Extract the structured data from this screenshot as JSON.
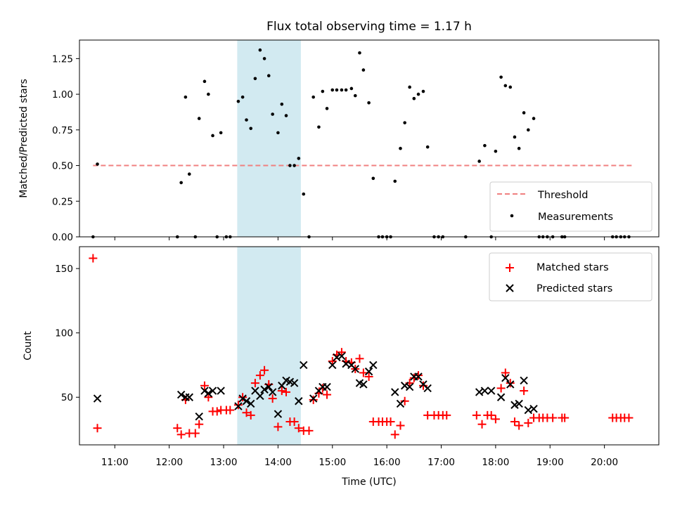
{
  "chart_data": [
    {
      "type": "scatter",
      "title": "Flux total observing time = 1.17 h",
      "xlabel": "",
      "ylabel": "Matched/Predicted stars",
      "xlim": [
        10.35,
        21.0
      ],
      "ylim": [
        0,
        1.38
      ],
      "yticks": [
        0.0,
        0.25,
        0.5,
        0.75,
        1.0,
        1.25
      ],
      "ytick_labels": [
        "0.00",
        "0.25",
        "0.50",
        "0.75",
        "1.00",
        "1.25"
      ],
      "shaded_region": {
        "x0": 13.25,
        "x1": 14.42,
        "color": "#add8e6"
      },
      "threshold_line": {
        "name": "Threshold",
        "y": 0.5,
        "x0": 10.6,
        "x1": 20.5,
        "color": "#f08080"
      },
      "legend_position": "lower-right",
      "series": [
        {
          "name": "Measurements",
          "color": "#000000",
          "points": [
            [
              10.6,
              0.0
            ],
            [
              10.68,
              0.51
            ],
            [
              12.15,
              0.0
            ],
            [
              12.22,
              0.38
            ],
            [
              12.3,
              0.98
            ],
            [
              12.37,
              0.44
            ],
            [
              12.48,
              0.0
            ],
            [
              12.55,
              0.83
            ],
            [
              12.65,
              1.09
            ],
            [
              12.72,
              1.0
            ],
            [
              12.8,
              0.71
            ],
            [
              12.88,
              0.0
            ],
            [
              12.95,
              0.73
            ],
            [
              13.05,
              0.0
            ],
            [
              13.12,
              0.0
            ],
            [
              13.27,
              0.95
            ],
            [
              13.35,
              0.98
            ],
            [
              13.42,
              0.82
            ],
            [
              13.5,
              0.76
            ],
            [
              13.58,
              1.11
            ],
            [
              13.67,
              1.31
            ],
            [
              13.75,
              1.25
            ],
            [
              13.83,
              1.13
            ],
            [
              13.9,
              0.86
            ],
            [
              14.0,
              0.73
            ],
            [
              14.07,
              0.93
            ],
            [
              14.15,
              0.85
            ],
            [
              14.22,
              0.5
            ],
            [
              14.3,
              0.5
            ],
            [
              14.38,
              0.55
            ],
            [
              14.47,
              0.3
            ],
            [
              14.57,
              0.0
            ],
            [
              14.65,
              0.98
            ],
            [
              14.75,
              0.77
            ],
            [
              14.82,
              1.02
            ],
            [
              14.9,
              0.9
            ],
            [
              15.0,
              1.03
            ],
            [
              15.08,
              1.03
            ],
            [
              15.17,
              1.03
            ],
            [
              15.25,
              1.03
            ],
            [
              15.35,
              1.04
            ],
            [
              15.42,
              0.99
            ],
            [
              15.5,
              1.29
            ],
            [
              15.57,
              1.17
            ],
            [
              15.67,
              0.94
            ],
            [
              15.75,
              0.41
            ],
            [
              15.85,
              0.0
            ],
            [
              15.92,
              0.0
            ],
            [
              16.0,
              0.0
            ],
            [
              16.07,
              0.0
            ],
            [
              16.15,
              0.39
            ],
            [
              16.25,
              0.62
            ],
            [
              16.33,
              0.8
            ],
            [
              16.42,
              1.05
            ],
            [
              16.5,
              0.97
            ],
            [
              16.58,
              1.0
            ],
            [
              16.67,
              1.02
            ],
            [
              16.75,
              0.63
            ],
            [
              16.87,
              0.0
            ],
            [
              16.95,
              0.0
            ],
            [
              17.03,
              0.0
            ],
            [
              17.45,
              0.0
            ],
            [
              17.7,
              0.53
            ],
            [
              17.8,
              0.64
            ],
            [
              17.92,
              0.0
            ],
            [
              18.0,
              0.6
            ],
            [
              18.1,
              1.12
            ],
            [
              18.18,
              1.06
            ],
            [
              18.27,
              1.05
            ],
            [
              18.35,
              0.7
            ],
            [
              18.43,
              0.62
            ],
            [
              18.52,
              0.87
            ],
            [
              18.6,
              0.75
            ],
            [
              18.7,
              0.83
            ],
            [
              18.8,
              0.0
            ],
            [
              18.87,
              0.0
            ],
            [
              18.95,
              0.0
            ],
            [
              19.05,
              0.0
            ],
            [
              19.22,
              0.0
            ],
            [
              19.27,
              0.0
            ],
            [
              20.15,
              0.0
            ],
            [
              20.22,
              0.0
            ],
            [
              20.3,
              0.0
            ],
            [
              20.37,
              0.0
            ],
            [
              20.45,
              0.0
            ]
          ]
        }
      ]
    },
    {
      "type": "scatter",
      "title": "",
      "xlabel": "Time (UTC)",
      "ylabel": "Count",
      "xlim": [
        10.35,
        21.0
      ],
      "ylim": [
        13,
        167
      ],
      "xticks": [
        11,
        12,
        13,
        14,
        15,
        16,
        17,
        18,
        19,
        20
      ],
      "xtick_labels": [
        "11:00",
        "12:00",
        "13:00",
        "14:00",
        "15:00",
        "16:00",
        "17:00",
        "18:00",
        "19:00",
        "20:00"
      ],
      "yticks": [
        50,
        100,
        150
      ],
      "ytick_labels": [
        "50",
        "100",
        "150"
      ],
      "shaded_region": {
        "x0": 13.25,
        "x1": 14.42,
        "color": "#add8e6"
      },
      "legend_position": "upper-right",
      "series": [
        {
          "name": "Matched stars",
          "color": "#ff0000",
          "marker": "plus",
          "points": [
            [
              10.6,
              158
            ],
            [
              10.68,
              26
            ],
            [
              12.15,
              26
            ],
            [
              12.22,
              21
            ],
            [
              12.3,
              48
            ],
            [
              12.37,
              22
            ],
            [
              12.48,
              22
            ],
            [
              12.55,
              29
            ],
            [
              12.65,
              59
            ],
            [
              12.72,
              50
            ],
            [
              12.8,
              39
            ],
            [
              12.88,
              39
            ],
            [
              12.95,
              40
            ],
            [
              13.05,
              40
            ],
            [
              13.12,
              40
            ],
            [
              13.27,
              44
            ],
            [
              13.35,
              50
            ],
            [
              13.42,
              38
            ],
            [
              13.5,
              36
            ],
            [
              13.58,
              61
            ],
            [
              13.67,
              67
            ],
            [
              13.75,
              71
            ],
            [
              13.83,
              60
            ],
            [
              13.9,
              49
            ],
            [
              14.0,
              27
            ],
            [
              14.07,
              55
            ],
            [
              14.15,
              54
            ],
            [
              14.22,
              31
            ],
            [
              14.3,
              31
            ],
            [
              14.38,
              26
            ],
            [
              14.47,
              24
            ],
            [
              14.57,
              24
            ],
            [
              14.65,
              48
            ],
            [
              14.75,
              53
            ],
            [
              14.82,
              57
            ],
            [
              14.9,
              52
            ],
            [
              15.0,
              78
            ],
            [
              15.08,
              83
            ],
            [
              15.17,
              85
            ],
            [
              15.25,
              78
            ],
            [
              15.35,
              77
            ],
            [
              15.42,
              72
            ],
            [
              15.5,
              80
            ],
            [
              15.57,
              69
            ],
            [
              15.67,
              66
            ],
            [
              15.75,
              31
            ],
            [
              15.85,
              31
            ],
            [
              15.92,
              31
            ],
            [
              16.0,
              31
            ],
            [
              16.07,
              31
            ],
            [
              16.15,
              21
            ],
            [
              16.25,
              28
            ],
            [
              16.33,
              47
            ],
            [
              16.42,
              61
            ],
            [
              16.5,
              65
            ],
            [
              16.58,
              67
            ],
            [
              16.67,
              59
            ],
            [
              16.75,
              36
            ],
            [
              16.87,
              36
            ],
            [
              16.95,
              36
            ],
            [
              17.03,
              36
            ],
            [
              17.1,
              36
            ],
            [
              17.65,
              36
            ],
            [
              17.75,
              29
            ],
            [
              17.85,
              36
            ],
            [
              17.92,
              36
            ],
            [
              18.0,
              33
            ],
            [
              18.1,
              57
            ],
            [
              18.18,
              69
            ],
            [
              18.27,
              61
            ],
            [
              18.35,
              31
            ],
            [
              18.43,
              28
            ],
            [
              18.52,
              55
            ],
            [
              18.6,
              30
            ],
            [
              18.7,
              34
            ],
            [
              18.8,
              34
            ],
            [
              18.87,
              34
            ],
            [
              18.95,
              34
            ],
            [
              19.05,
              34
            ],
            [
              19.22,
              34
            ],
            [
              19.27,
              34
            ],
            [
              20.15,
              34
            ],
            [
              20.22,
              34
            ],
            [
              20.3,
              34
            ],
            [
              20.37,
              34
            ],
            [
              20.45,
              34
            ]
          ]
        },
        {
          "name": "Predicted stars",
          "color": "#000000",
          "marker": "x",
          "points": [
            [
              10.68,
              49
            ],
            [
              12.22,
              52
            ],
            [
              12.3,
              50
            ],
            [
              12.37,
              50
            ],
            [
              12.55,
              35
            ],
            [
              12.65,
              55
            ],
            [
              12.72,
              53
            ],
            [
              12.8,
              55
            ],
            [
              12.95,
              55
            ],
            [
              13.27,
              43
            ],
            [
              13.35,
              49
            ],
            [
              13.42,
              47
            ],
            [
              13.5,
              45
            ],
            [
              13.58,
              55
            ],
            [
              13.67,
              51
            ],
            [
              13.75,
              56
            ],
            [
              13.83,
              58
            ],
            [
              13.9,
              54
            ],
            [
              14.0,
              37
            ],
            [
              14.07,
              59
            ],
            [
              14.15,
              63
            ],
            [
              14.22,
              62
            ],
            [
              14.3,
              61
            ],
            [
              14.38,
              47
            ],
            [
              14.47,
              75
            ],
            [
              14.65,
              49
            ],
            [
              14.75,
              55
            ],
            [
              14.82,
              58
            ],
            [
              14.9,
              58
            ],
            [
              15.0,
              75
            ],
            [
              15.08,
              81
            ],
            [
              15.17,
              82
            ],
            [
              15.25,
              76
            ],
            [
              15.35,
              75
            ],
            [
              15.42,
              72
            ],
            [
              15.5,
              61
            ],
            [
              15.57,
              60
            ],
            [
              15.67,
              70
            ],
            [
              15.75,
              75
            ],
            [
              16.15,
              54
            ],
            [
              16.25,
              45
            ],
            [
              16.33,
              59
            ],
            [
              16.42,
              58
            ],
            [
              16.5,
              66
            ],
            [
              16.58,
              66
            ],
            [
              16.67,
              60
            ],
            [
              16.75,
              57
            ],
            [
              17.7,
              54
            ],
            [
              17.8,
              55
            ],
            [
              17.92,
              55
            ],
            [
              18.1,
              50
            ],
            [
              18.18,
              65
            ],
            [
              18.27,
              60
            ],
            [
              18.35,
              44
            ],
            [
              18.43,
              45
            ],
            [
              18.52,
              63
            ],
            [
              18.6,
              40
            ],
            [
              18.7,
              41
            ]
          ]
        }
      ]
    }
  ]
}
